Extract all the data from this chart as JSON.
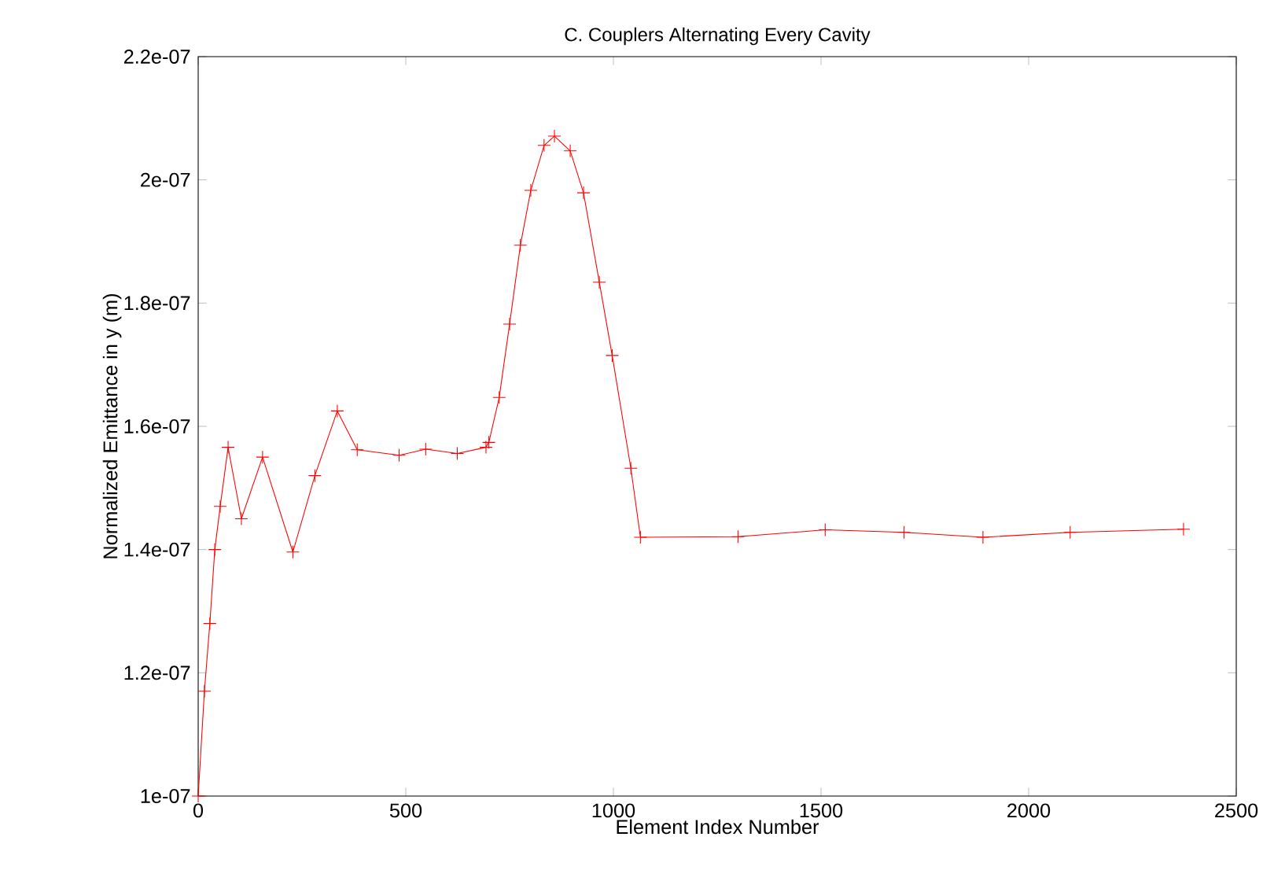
{
  "chart_data": {
    "type": "line",
    "title": "C. Couplers Alternating Every Cavity",
    "xlabel": "Element Index Number",
    "ylabel": "Normalized Emittance in y (m)",
    "xlim": [
      0,
      2500
    ],
    "xticks": [
      0,
      500,
      1000,
      1500,
      2000,
      2500
    ],
    "ylim": [
      1e-07,
      2.2e-07
    ],
    "yticks": [
      {
        "value": 1e-07,
        "label": "1e-07"
      },
      {
        "value": 1.2e-07,
        "label": "1.2e-07"
      },
      {
        "value": 1.4e-07,
        "label": "1.4e-07"
      },
      {
        "value": 1.6e-07,
        "label": "1.6e-07"
      },
      {
        "value": 1.8e-07,
        "label": "1.8e-07"
      },
      {
        "value": 2e-07,
        "label": "2e-07"
      },
      {
        "value": 2.2e-07,
        "label": "2.2e-07"
      }
    ],
    "marker": "cross",
    "series": [
      {
        "color": "#ff0000",
        "x": [
          0,
          15,
          28,
          40,
          53,
          72,
          104,
          155,
          228,
          281,
          335,
          383,
          484,
          548,
          624,
          693,
          700,
          725,
          750,
          776,
          801,
          833,
          858,
          896,
          928,
          966,
          997,
          1042,
          1065,
          1300,
          1510,
          1700,
          1890,
          2100,
          2373
        ],
        "values": [
          1e-07,
          1.17e-07,
          1.28e-07,
          1.4e-07,
          1.47e-07,
          1.566e-07,
          1.45e-07,
          1.55e-07,
          1.396e-07,
          1.52e-07,
          1.625e-07,
          1.562e-07,
          1.553e-07,
          1.563e-07,
          1.556e-07,
          1.566e-07,
          1.574e-07,
          1.647e-07,
          1.766e-07,
          1.894e-07,
          1.983e-07,
          2.056e-07,
          2.071e-07,
          2.047e-07,
          1.979e-07,
          1.834e-07,
          1.715e-07,
          1.532e-07,
          1.42e-07,
          1.421e-07,
          1.432e-07,
          1.428e-07,
          1.42e-07,
          1.428e-07,
          1.433e-07
        ]
      }
    ]
  }
}
